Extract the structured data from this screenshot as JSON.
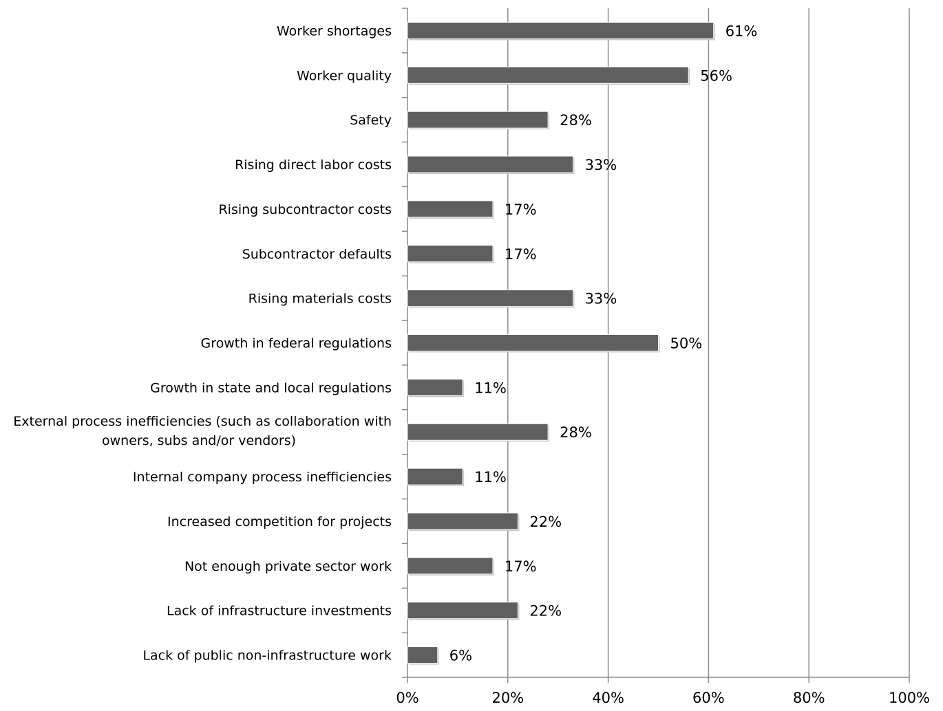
{
  "chart_data": {
    "type": "bar",
    "orientation": "horizontal",
    "categories": [
      "Worker shortages",
      "Worker quality",
      "Safety",
      "Rising direct labor costs",
      "Rising subcontractor costs",
      "Subcontractor defaults",
      "Rising materials costs",
      "Growth in federal regulations",
      "Growth in state and local regulations",
      "External process inefficiencies (such as collaboration with owners, subs and/or vendors)",
      "Internal company process inefficiencies",
      "Increased competition for projects",
      "Not enough private sector work",
      "Lack of infrastructure investments",
      "Lack of public non-infrastructure work"
    ],
    "category_lines": [
      [
        "Worker shortages"
      ],
      [
        "Worker quality"
      ],
      [
        "Safety"
      ],
      [
        "Rising direct labor costs"
      ],
      [
        "Rising subcontractor costs"
      ],
      [
        "Subcontractor defaults"
      ],
      [
        "Rising materials costs"
      ],
      [
        "Growth in federal regulations"
      ],
      [
        "Growth in state and local regulations"
      ],
      [
        "External process inefficiencies (such as collaboration with",
        "owners, subs and/or vendors)"
      ],
      [
        "Internal company process inefficiencies"
      ],
      [
        "Increased competition for projects"
      ],
      [
        "Not enough private sector work"
      ],
      [
        "Lack of infrastructure investments"
      ],
      [
        "Lack of public non-infrastructure work"
      ]
    ],
    "values": [
      61,
      56,
      28,
      33,
      17,
      17,
      33,
      50,
      11,
      28,
      11,
      22,
      17,
      22,
      6
    ],
    "data_labels": [
      "61%",
      "56%",
      "28%",
      "33%",
      "17%",
      "17%",
      "33%",
      "50%",
      "11%",
      "28%",
      "11%",
      "22%",
      "17%",
      "22%",
      "6%"
    ],
    "x_ticks": [
      0,
      20,
      40,
      60,
      80,
      100
    ],
    "x_tick_labels": [
      "0%",
      "20%",
      "40%",
      "60%",
      "80%",
      "100%"
    ],
    "xlim": [
      0,
      100
    ],
    "title": "",
    "xlabel": "",
    "ylabel": "",
    "grid": "vertical",
    "legend": "none",
    "colors": {
      "bar": "#5f5f5f",
      "grid": "#8c8c8c",
      "axis": "#8c8c8c",
      "bar_shadow": "#c8c8c8"
    }
  }
}
